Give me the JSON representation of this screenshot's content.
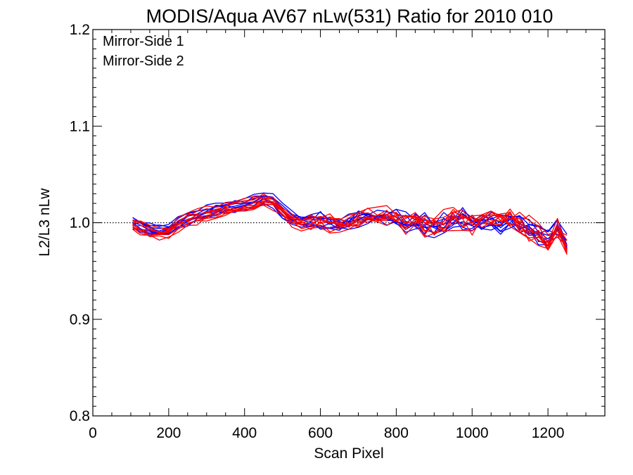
{
  "chart_data": {
    "type": "line",
    "title": "MODIS/Aqua AV67 nLw(531) Ratio for 2010 010",
    "xlabel": "Scan Pixel",
    "ylabel": "L2/L3 nLw",
    "xlim": [
      0,
      1350
    ],
    "ylim": [
      0.8,
      1.2
    ],
    "x_ticks": [
      "0",
      "200",
      "400",
      "600",
      "800",
      "1000",
      "1200"
    ],
    "y_ticks": [
      "0.8",
      "0.9",
      "1.0",
      "1.1",
      "1.2"
    ],
    "reference_line": 1.0,
    "legend_position": "top-left",
    "x": [
      105,
      125,
      150,
      175,
      200,
      225,
      250,
      275,
      300,
      325,
      350,
      375,
      400,
      425,
      450,
      475,
      500,
      525,
      550,
      575,
      600,
      625,
      650,
      675,
      700,
      725,
      750,
      775,
      800,
      825,
      850,
      875,
      900,
      925,
      950,
      975,
      1000,
      1025,
      1050,
      1075,
      1100,
      1125,
      1150,
      1175,
      1200,
      1225,
      1250
    ],
    "series": [
      {
        "name": "Mirror-Side 1",
        "color": "#0000ff",
        "base": [
          1.0,
          0.997,
          0.994,
          0.992,
          0.993,
          0.999,
          1.004,
          1.007,
          1.011,
          1.012,
          1.015,
          1.017,
          1.02,
          1.022,
          1.025,
          1.022,
          1.012,
          1.004,
          1.001,
          1.002,
          1.003,
          1.0,
          0.998,
          1.0,
          1.003,
          1.006,
          1.006,
          1.007,
          1.005,
          1.002,
          1.001,
          0.998,
          0.996,
          0.998,
          1.003,
          1.002,
          0.998,
          0.999,
          1.0,
          1.001,
          1.001,
          0.998,
          0.993,
          0.986,
          0.982,
          0.993,
          0.975
        ]
      },
      {
        "name": "Mirror-Side 2",
        "color": "#ff0000",
        "base": [
          0.997,
          0.994,
          0.991,
          0.99,
          0.99,
          0.997,
          1.003,
          1.006,
          1.009,
          1.01,
          1.013,
          1.015,
          1.018,
          1.02,
          1.023,
          1.021,
          1.011,
          1.003,
          1.0,
          1.001,
          1.002,
          0.999,
          0.997,
          0.999,
          1.004,
          1.007,
          1.006,
          1.008,
          1.005,
          1.002,
          1.002,
          0.999,
          0.997,
          1.0,
          1.005,
          1.004,
          1.0,
          1.002,
          1.004,
          1.005,
          1.004,
          1.0,
          0.994,
          0.986,
          0.98,
          0.994,
          0.976
        ]
      }
    ],
    "lines_per_series": 10
  }
}
